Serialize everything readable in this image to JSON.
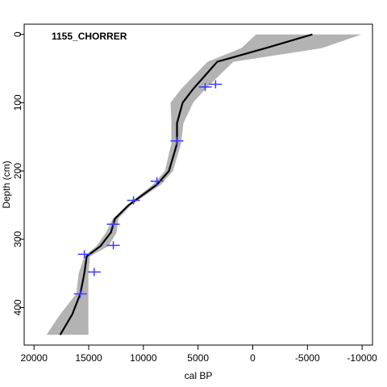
{
  "chart_data": {
    "type": "line",
    "title": "1155_CHORRER",
    "xlabel": "cal BP",
    "ylabel": "Depth (cm)",
    "depths": [
      0,
      20,
      40,
      80,
      100,
      130,
      160,
      200,
      220,
      250,
      270,
      290,
      310,
      325,
      350,
      380,
      410,
      440
    ],
    "series": [
      {
        "color": "#000000",
        "values": [
          -5452,
          -1179,
          3242,
          5452,
          6410,
          6926,
          6926,
          7663,
          8768,
          11347,
          12600,
          12968,
          13926,
          15178,
          15400,
          15768,
          16505,
          17610
        ]
      }
    ],
    "band_color": "#b3b3b3",
    "band_older": [
      -295,
      1032,
      4126,
      6558,
      7515,
      7442,
      7442,
      8031,
      9136,
      11494,
      12800,
      13410,
      14294,
      15399,
      15915,
      16136,
      17610,
      18862
    ],
    "band_younger": [
      -9947,
      -6336,
      1768,
      4347,
      5452,
      6336,
      6558,
      7294,
      8400,
      11126,
      12300,
      12452,
      13189,
      14883,
      15031,
      15031,
      15031,
      15031
    ],
    "dates": {
      "color": "#3a3aff",
      "age": [
        4350,
        3400,
        6926,
        8768,
        10900,
        12750,
        12750,
        15400,
        14500,
        15770
      ],
      "depth": [
        77,
        73,
        156,
        215,
        243,
        278,
        309,
        322,
        348,
        380
      ]
    },
    "xlim": [
      20900,
      -10950
    ],
    "ylim": [
      455,
      -15
    ],
    "xticks": [
      20000,
      15000,
      10000,
      5000,
      0,
      -5000,
      -10000
    ],
    "yticks": [
      0,
      100,
      200,
      300,
      400
    ]
  }
}
